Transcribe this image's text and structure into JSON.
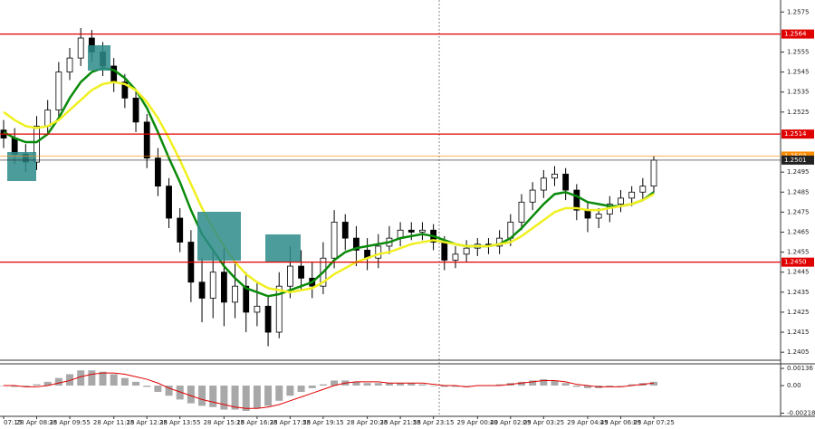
{
  "chart_data": [
    {
      "type": "candlestick",
      "categories": [
        "07:15",
        null,
        null,
        "28 Apr 08:35",
        null,
        null,
        "28 Apr 09:55",
        null,
        null,
        null,
        "28 Apr 11:15",
        null,
        null,
        "28 Apr 12:35",
        null,
        null,
        "28 Apr 13:55",
        null,
        null,
        null,
        "28 Apr 15:15",
        null,
        null,
        "28 Apr 16:35",
        null,
        null,
        "28 Apr 17:55",
        null,
        null,
        "28 Apr 19:15",
        null,
        null,
        null,
        "28 Apr 20:35",
        null,
        null,
        "28 Apr 21:55",
        null,
        null,
        "28 Apr 23:15",
        null,
        null,
        null,
        "29 Apr 00:40",
        null,
        null,
        "29 Apr 02:05",
        null,
        null,
        "29 Apr 03:25",
        null,
        null,
        null,
        "29 Apr 04:45",
        null,
        null,
        "29 Apr 06:05",
        null,
        null,
        "29 Apr 07:25"
      ],
      "open": [
        1.2516,
        1.2512,
        1.2504,
        1.25,
        1.2518,
        1.2526,
        1.2545,
        1.2552,
        1.2562,
        1.2555,
        1.2548,
        1.254,
        1.2532,
        1.252,
        1.2502,
        1.2488,
        1.2472,
        1.246,
        1.244,
        1.2432,
        1.2445,
        1.243,
        1.2438,
        1.2425,
        1.2428,
        1.2415,
        1.2438,
        1.2448,
        1.2442,
        1.2438,
        1.2452,
        1.247,
        1.2462,
        1.2456,
        1.2452,
        1.2458,
        1.2462,
        1.2466,
        1.2465,
        1.2466,
        1.246,
        1.2451,
        1.2454,
        1.2457,
        1.2459,
        1.2458,
        1.2462,
        1.247,
        1.248,
        1.2486,
        1.2492,
        1.2494,
        1.2486,
        1.2476,
        1.2472,
        1.2474,
        1.2479,
        1.2482,
        1.2485,
        1.2488
      ],
      "high": [
        1.2521,
        1.2517,
        1.2509,
        1.2523,
        1.2531,
        1.255,
        1.2557,
        1.2567,
        1.2566,
        1.256,
        1.2552,
        1.2544,
        1.2536,
        1.2524,
        1.2507,
        1.2492,
        1.2477,
        1.2466,
        1.2452,
        1.2455,
        1.2458,
        1.245,
        1.2445,
        1.244,
        1.2433,
        1.2445,
        1.2458,
        1.2456,
        1.245,
        1.246,
        1.2476,
        1.2474,
        1.2468,
        1.2462,
        1.2464,
        1.2468,
        1.247,
        1.247,
        1.247,
        1.2469,
        1.2463,
        1.2458,
        1.2461,
        1.2462,
        1.2462,
        1.2466,
        1.2474,
        1.2484,
        1.249,
        1.2496,
        1.2498,
        1.2497,
        1.2489,
        1.248,
        1.2477,
        1.2483,
        1.2486,
        1.2488,
        1.2492,
        1.2503
      ],
      "low": [
        1.2507,
        1.2499,
        1.2495,
        1.2496,
        1.2514,
        1.2522,
        1.2541,
        1.2548,
        1.255,
        1.2543,
        1.2535,
        1.2527,
        1.2515,
        1.2497,
        1.2483,
        1.2467,
        1.2455,
        1.243,
        1.242,
        1.2422,
        1.2418,
        1.2422,
        1.2415,
        1.2418,
        1.2408,
        1.2412,
        1.2432,
        1.2436,
        1.2432,
        1.2434,
        1.2447,
        1.2456,
        1.2448,
        1.2446,
        1.2447,
        1.2454,
        1.2458,
        1.2461,
        1.2461,
        1.2456,
        1.2446,
        1.2447,
        1.245,
        1.2453,
        1.2454,
        1.2454,
        1.2458,
        1.2466,
        1.2476,
        1.2482,
        1.2488,
        1.2481,
        1.2471,
        1.2465,
        1.2467,
        1.247,
        1.2475,
        1.2478,
        1.2481,
        1.2485
      ],
      "close": [
        1.2512,
        1.2504,
        1.25,
        1.2518,
        1.2526,
        1.2545,
        1.2552,
        1.2562,
        1.2555,
        1.2548,
        1.254,
        1.2532,
        1.252,
        1.2502,
        1.2488,
        1.2472,
        1.246,
        1.244,
        1.2432,
        1.2445,
        1.243,
        1.2438,
        1.2425,
        1.2428,
        1.2415,
        1.2438,
        1.2448,
        1.2442,
        1.2438,
        1.2452,
        1.247,
        1.2462,
        1.2456,
        1.2452,
        1.2458,
        1.2462,
        1.2466,
        1.2465,
        1.2466,
        1.246,
        1.2451,
        1.2454,
        1.2457,
        1.2459,
        1.2458,
        1.2462,
        1.247,
        1.248,
        1.2486,
        1.2492,
        1.2494,
        1.2486,
        1.2476,
        1.2472,
        1.2474,
        1.2479,
        1.2482,
        1.2485,
        1.2488,
        1.2501
      ],
      "moving_averages": [
        {
          "color": "#0a8a0a",
          "values": [
            1.2515,
            1.2512,
            1.251,
            1.251,
            1.2514,
            1.2522,
            1.2532,
            1.254,
            1.2545,
            1.2547,
            1.2546,
            1.2542,
            1.2536,
            1.2527,
            1.2515,
            1.2502,
            1.249,
            1.2476,
            1.2464,
            1.2456,
            1.2448,
            1.2442,
            1.2437,
            1.2435,
            1.2433,
            1.2434,
            1.2436,
            1.2438,
            1.244,
            1.2445,
            1.2451,
            1.2455,
            1.2457,
            1.2458,
            1.2459,
            1.246,
            1.2462,
            1.2463,
            1.2464,
            1.2463,
            1.2461,
            1.2459,
            1.2458,
            1.2458,
            1.2458,
            1.2459,
            1.2462,
            1.2467,
            1.2473,
            1.2479,
            1.2484,
            1.2485,
            1.2483,
            1.248,
            1.2479,
            1.2478,
            1.2478,
            1.2479,
            1.2481,
            1.2485
          ]
        },
        {
          "color": "#f0f020",
          "values": [
            1.2525,
            1.2521,
            1.2518,
            1.2517,
            1.2518,
            1.2521,
            1.2526,
            1.2531,
            1.2536,
            1.2539,
            1.254,
            1.2539,
            1.2536,
            1.253,
            1.2522,
            1.2512,
            1.2501,
            1.2489,
            1.2477,
            1.2467,
            1.2458,
            1.245,
            1.2444,
            1.244,
            1.2437,
            1.2436,
            1.2435,
            1.2436,
            1.2437,
            1.244,
            1.2444,
            1.2447,
            1.245,
            1.2452,
            1.2454,
            1.2455,
            1.2457,
            1.2459,
            1.246,
            1.2461,
            1.246,
            1.2459,
            1.2458,
            1.2458,
            1.2458,
            1.2459,
            1.246,
            1.2463,
            1.2467,
            1.2471,
            1.2475,
            1.2477,
            1.2477,
            1.2476,
            1.2476,
            1.2477,
            1.2478,
            1.2479,
            1.2481,
            1.2484
          ]
        }
      ],
      "levels": [
        1.2564,
        1.2514,
        {
          "value": 1.245,
          "label": "1.2450"
        }
      ],
      "level_color": "#e00000",
      "price_markers": [
        {
          "value": 1.2503,
          "color": "#ff8c00"
        },
        {
          "value": 1.2501,
          "color": "#222222"
        }
      ],
      "ylim": [
        1.2401,
        1.2581
      ],
      "yticks": [
        1.2405,
        1.2415,
        1.2425,
        1.2435,
        1.2445,
        1.2455,
        1.2465,
        1.2475,
        1.2485,
        1.2495,
        1.2525,
        1.2535,
        1.2545,
        1.2555,
        1.2575
      ]
    },
    {
      "type": "macd",
      "values": [
        0.0,
        -0.0001,
        -0.0001,
        0.0001,
        0.0003,
        0.0006,
        0.0009,
        0.0012,
        0.0012,
        0.0011,
        0.0009,
        0.0006,
        0.0003,
        -0.0001,
        -0.0005,
        -0.0008,
        -0.0011,
        -0.0014,
        -0.0016,
        -0.0017,
        -0.0019,
        -0.0019,
        -0.002,
        -0.0018,
        -0.0016,
        -0.0012,
        -0.0008,
        -0.0005,
        -0.0002,
        0.0001,
        0.0004,
        0.0004,
        0.0003,
        0.0002,
        0.0002,
        0.0002,
        0.0002,
        0.0002,
        0.0001,
        0.0,
        -0.0001,
        -0.0001,
        0.0,
        0.0,
        0.0,
        0.0001,
        0.0002,
        0.0003,
        0.0004,
        0.0005,
        0.0004,
        0.0002,
        -0.0001,
        -0.0002,
        -0.0002,
        -0.0001,
        0.0,
        0.0001,
        0.0002,
        0.0003
      ],
      "color": "#a8a8a8",
      "signal": {
        "color": "#e00000",
        "values": [
          0.0,
          0.0,
          -0.0001,
          -0.0001,
          0.0,
          0.0002,
          0.0004,
          0.0007,
          0.0009,
          0.001,
          0.001,
          0.0009,
          0.0007,
          0.0005,
          0.0002,
          -0.0002,
          -0.0005,
          -0.0008,
          -0.0011,
          -0.0013,
          -0.0015,
          -0.0017,
          -0.0018,
          -0.0018,
          -0.0017,
          -0.0015,
          -0.0012,
          -0.0009,
          -0.0006,
          -0.0003,
          0.0,
          0.0002,
          0.0003,
          0.0003,
          0.0003,
          0.0002,
          0.0002,
          0.0002,
          0.0002,
          0.0001,
          0.0,
          0.0,
          -0.0001,
          0.0,
          0.0,
          0.0,
          0.0001,
          0.0002,
          0.0003,
          0.0004,
          0.0004,
          0.0003,
          0.0001,
          0.0,
          -0.0001,
          -0.0001,
          -0.0001,
          0.0,
          0.0001,
          0.0002
        ]
      },
      "ylim": [
        -0.00243,
        0.00172
      ],
      "yticks": [
        0.00136,
        {
          "value": 0,
          "label": "0.00"
        },
        -0.00218
      ]
    }
  ]
}
